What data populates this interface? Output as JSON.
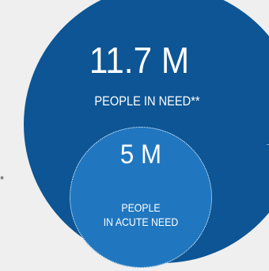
{
  "outer": {
    "value": "11.7 M",
    "label": "PEOPLE IN NEED**"
  },
  "inner": {
    "value": "5 M",
    "label_line1": "PEOPLE",
    "label_line2": "IN ACUTE NEED"
  },
  "side_mark": "*",
  "colors": {
    "background": "#efefef",
    "outer_circle": "#0d5594",
    "inner_circle": "#2077c0",
    "text": "#ffffff"
  }
}
